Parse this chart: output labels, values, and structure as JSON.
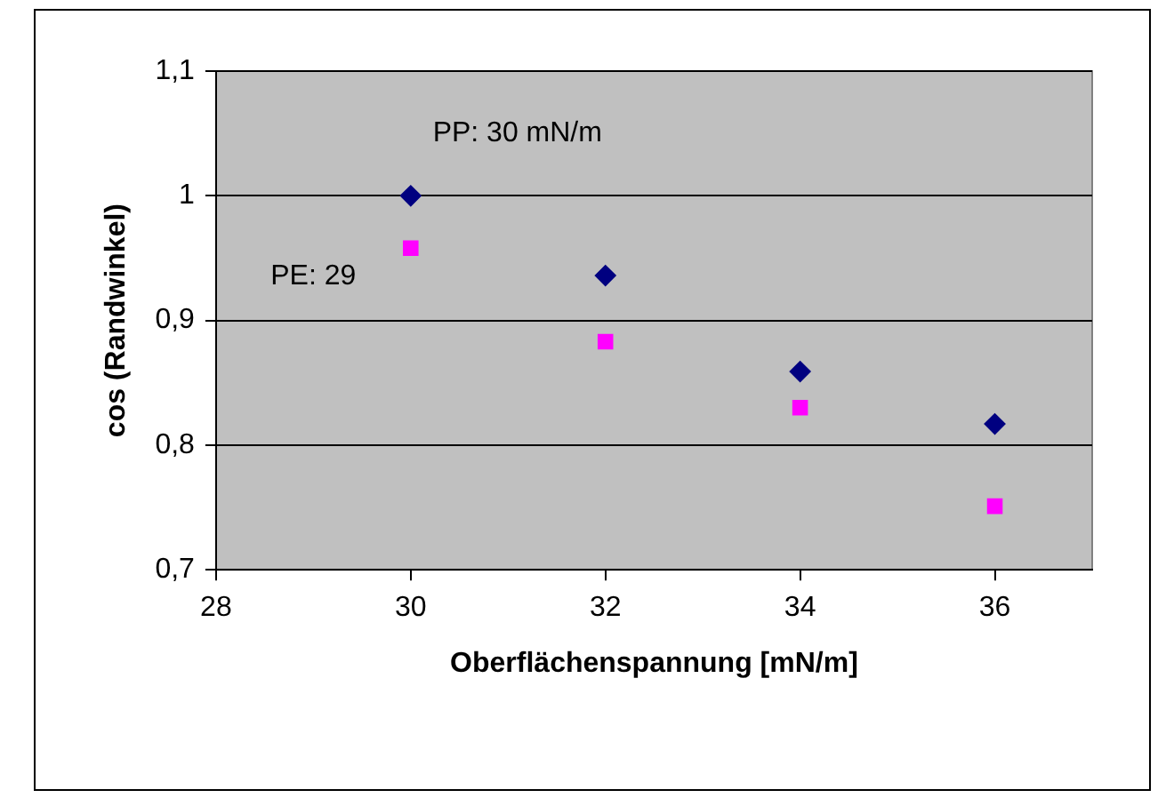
{
  "chart_data": {
    "type": "scatter",
    "xlabel": "Oberflächenspannung [mN/m]",
    "ylabel": "cos (Randwinkel)",
    "xlim": [
      28,
      37
    ],
    "xticks": [
      28,
      30,
      32,
      34,
      36
    ],
    "ylim": [
      0.7,
      1.1
    ],
    "yticks": [
      {
        "value": 0.7,
        "label": "0,7"
      },
      {
        "value": 0.8,
        "label": "0,8"
      },
      {
        "value": 0.9,
        "label": "0,9"
      },
      {
        "value": 1,
        "label": "1"
      },
      {
        "value": 1.1,
        "label": "1,1"
      }
    ],
    "grid": "y",
    "legend": false,
    "x": [
      30,
      32,
      34,
      36
    ],
    "series": [
      {
        "color": "#000080",
        "marker": "diamond",
        "values": [
          1.0,
          0.936,
          0.859,
          0.817
        ]
      },
      {
        "color": "#ff00ff",
        "marker": "square",
        "values": [
          0.958,
          0.883,
          0.83,
          0.751
        ]
      }
    ],
    "annotations": [
      "PP: 30 mN/m",
      "PE: 29"
    ]
  }
}
